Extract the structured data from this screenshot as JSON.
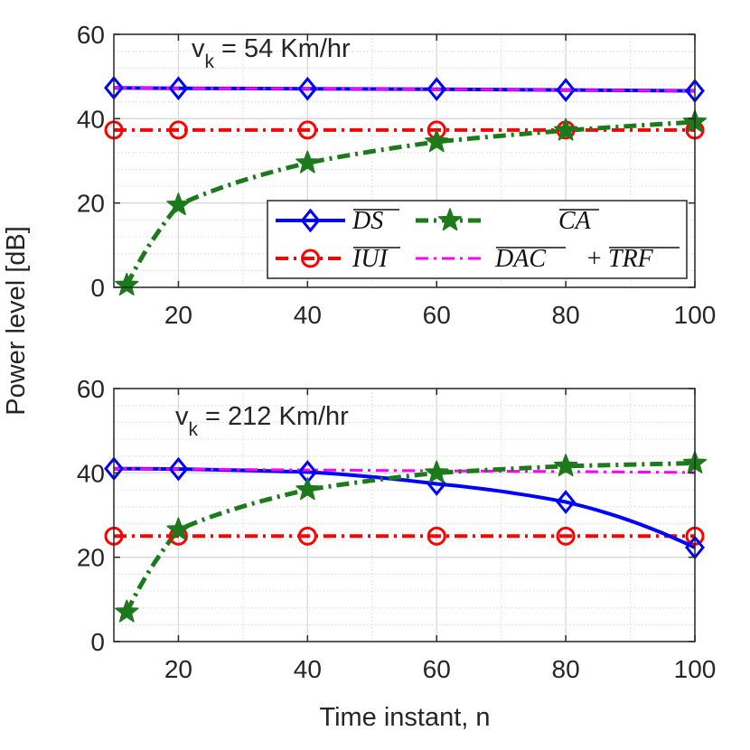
{
  "colors": {
    "ds": "#0000ff",
    "iui": "#ff0000",
    "ca": "#1c7a1c",
    "dac_trf": "#ff00ff",
    "grid": "#d9d9d9",
    "axis": "#262626"
  },
  "figure": {
    "ylabel": "Power level [dB]",
    "xlabel": "Time instant, n"
  },
  "legend": {
    "ds": "DS",
    "ca": "CA",
    "iui": "IUI",
    "dac": "DAC",
    "plus": "+",
    "trf": "TRF"
  },
  "chart_data": [
    {
      "type": "line",
      "annotation": {
        "main": "v",
        "sub": "k",
        "rest": " = 54 Km/hr"
      },
      "xlim": [
        10,
        100
      ],
      "ylim": [
        0,
        60
      ],
      "xticks": [
        20,
        40,
        60,
        80,
        100
      ],
      "yticks": [
        0,
        20,
        40,
        60
      ],
      "grid": true,
      "legend_position": "bottom-right",
      "series": [
        {
          "key": "ds",
          "name": "DS",
          "marker": "diamond",
          "style": "solid",
          "x": [
            10,
            20,
            40,
            60,
            80,
            100
          ],
          "y": [
            47.3,
            47.2,
            47.1,
            47.0,
            46.8,
            46.6
          ]
        },
        {
          "key": "iui",
          "name": "IUI",
          "marker": "circle",
          "style": "dashdot",
          "x": [
            10,
            20,
            40,
            60,
            80,
            100
          ],
          "y": [
            37.3,
            37.3,
            37.3,
            37.3,
            37.3,
            37.3
          ]
        },
        {
          "key": "dac_trf",
          "name": "DAC + TRF",
          "marker": "none",
          "style": "dashdot",
          "x": [
            10,
            20,
            40,
            60,
            80,
            100
          ],
          "y": [
            47.3,
            47.2,
            47.1,
            47.0,
            46.8,
            46.6
          ]
        },
        {
          "key": "ca",
          "name": "CA",
          "marker": "star",
          "style": "dashdot",
          "x": [
            12,
            20,
            40,
            60,
            80,
            100
          ],
          "y": [
            0.5,
            19.5,
            29.5,
            34.5,
            37.2,
            39.2
          ]
        }
      ]
    },
    {
      "type": "line",
      "annotation": {
        "main": "v",
        "sub": "k",
        "rest": " = 212 Km/hr"
      },
      "xlim": [
        10,
        100
      ],
      "ylim": [
        0,
        60
      ],
      "xticks": [
        20,
        40,
        60,
        80,
        100
      ],
      "yticks": [
        0,
        20,
        40,
        60
      ],
      "grid": true,
      "legend_position": "none",
      "series": [
        {
          "key": "ds",
          "name": "DS",
          "marker": "diamond",
          "style": "solid",
          "x": [
            10,
            20,
            40,
            60,
            80,
            100
          ],
          "y": [
            41.0,
            40.9,
            40.2,
            37.4,
            33.1,
            22.3
          ]
        },
        {
          "key": "iui",
          "name": "IUI",
          "marker": "circle",
          "style": "dashdot",
          "x": [
            10,
            20,
            40,
            60,
            80,
            100
          ],
          "y": [
            25.0,
            25.0,
            25.0,
            25.0,
            25.0,
            25.0
          ]
        },
        {
          "key": "dac_trf",
          "name": "DAC + TRF",
          "marker": "none",
          "style": "dashdot",
          "x": [
            10,
            20,
            40,
            60,
            80,
            100
          ],
          "y": [
            41.0,
            40.9,
            40.7,
            40.5,
            40.3,
            40.1
          ]
        },
        {
          "key": "ca",
          "name": "CA",
          "marker": "star",
          "style": "dashdot",
          "x": [
            12,
            20,
            40,
            60,
            80,
            100
          ],
          "y": [
            7.0,
            26.5,
            36.0,
            40.0,
            41.6,
            42.3
          ]
        }
      ]
    }
  ]
}
